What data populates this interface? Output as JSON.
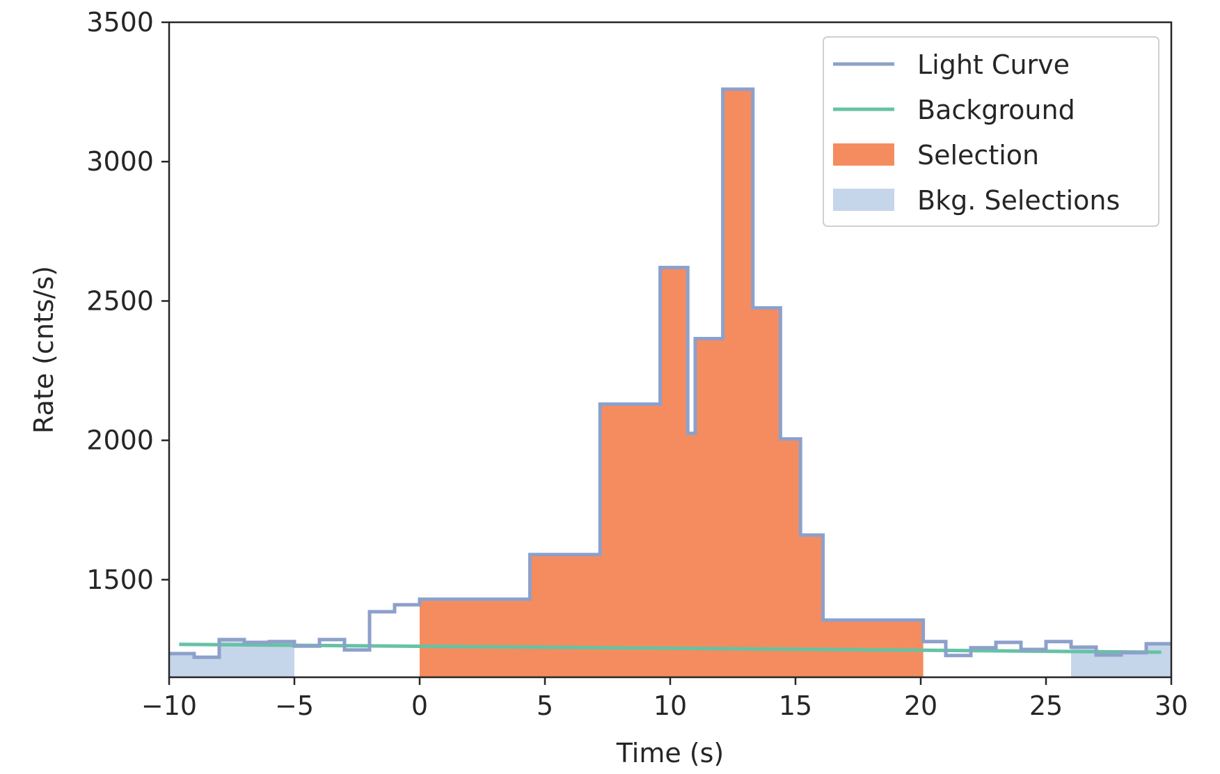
{
  "chart_data": {
    "type": "area",
    "title": "",
    "xlabel": "Time (s)",
    "ylabel": "Rate (cnts/s)",
    "xlim": [
      -10,
      30
    ],
    "ylim": [
      1150,
      3500
    ],
    "xticks": [
      -10,
      -5,
      0,
      5,
      10,
      15,
      20,
      25,
      30
    ],
    "yticks": [
      1500,
      2000,
      2500,
      3000,
      3500
    ],
    "xtick_labels": [
      "−10",
      "−5",
      "0",
      "5",
      "10",
      "15",
      "20",
      "25",
      "30"
    ],
    "ytick_labels": [
      "1500",
      "2000",
      "2500",
      "3000",
      "3500"
    ],
    "grid": false,
    "legend_position": "top-right",
    "legend": {
      "light_curve": "Light Curve",
      "background": "Background",
      "selection": "Selection",
      "bkg_selections": "Bkg. Selections"
    },
    "colors": {
      "light_curve": "#8da0cb",
      "background": "#66c2a5",
      "selection": "#f58c5f",
      "bkg_selections": "#c6d6ea",
      "axes": "#262626"
    },
    "light_curve": {
      "edges": [
        -10,
        -9,
        -8,
        -7,
        -6,
        -5,
        -4,
        -3,
        -2,
        -1,
        0,
        4.4,
        7.2,
        9.6,
        10.7,
        11.0,
        12.1,
        13.3,
        14.4,
        15.2,
        16.1,
        20.1,
        21.0,
        22.0,
        23.0,
        24.0,
        25.0,
        26.0,
        27.0,
        28.0,
        29.0,
        30.0
      ],
      "rates": [
        1235,
        1222,
        1285,
        1275,
        1278,
        1262,
        1285,
        1248,
        1385,
        1410,
        1430,
        1590,
        2130,
        2620,
        2025,
        2365,
        3260,
        2475,
        2005,
        1660,
        1355,
        1278,
        1228,
        1256,
        1275,
        1250,
        1278,
        1258,
        1230,
        1238,
        1270
      ]
    },
    "background": {
      "x": [
        -9.6,
        29.6
      ],
      "y": [
        1268,
        1240
      ]
    },
    "selection": {
      "range": [
        0,
        20.1
      ]
    },
    "bkg_selections": [
      [
        -10,
        -5
      ],
      [
        26.0,
        30
      ]
    ]
  }
}
